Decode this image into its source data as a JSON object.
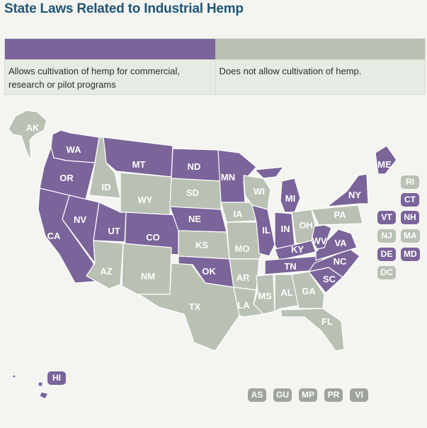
{
  "title": "State Laws Related to Industrial Hemp",
  "colors": {
    "allows": "#7a6499",
    "not_allowed": "#b9c0b4",
    "territory": "#9ea49a"
  },
  "legend": {
    "allows": "Allows cultivation of hemp for commercial, research or pilot programs",
    "not_allowed": "Does not allow cultivation of hemp."
  },
  "states": [
    {
      "code": "AK",
      "status": "not_allowed"
    },
    {
      "code": "WA",
      "status": "allows"
    },
    {
      "code": "OR",
      "status": "allows"
    },
    {
      "code": "CA",
      "status": "allows"
    },
    {
      "code": "NV",
      "status": "allows"
    },
    {
      "code": "ID",
      "status": "not_allowed"
    },
    {
      "code": "MT",
      "status": "allows"
    },
    {
      "code": "WY",
      "status": "not_allowed"
    },
    {
      "code": "UT",
      "status": "allows"
    },
    {
      "code": "AZ",
      "status": "not_allowed"
    },
    {
      "code": "CO",
      "status": "allows"
    },
    {
      "code": "NM",
      "status": "not_allowed"
    },
    {
      "code": "ND",
      "status": "allows"
    },
    {
      "code": "SD",
      "status": "not_allowed"
    },
    {
      "code": "NE",
      "status": "allows"
    },
    {
      "code": "KS",
      "status": "not_allowed"
    },
    {
      "code": "OK",
      "status": "allows"
    },
    {
      "code": "TX",
      "status": "not_allowed"
    },
    {
      "code": "MN",
      "status": "allows"
    },
    {
      "code": "IA",
      "status": "not_allowed"
    },
    {
      "code": "MO",
      "status": "not_allowed"
    },
    {
      "code": "AR",
      "status": "not_allowed"
    },
    {
      "code": "LA",
      "status": "not_allowed"
    },
    {
      "code": "WI",
      "status": "not_allowed"
    },
    {
      "code": "IL",
      "status": "allows"
    },
    {
      "code": "MI",
      "status": "allows"
    },
    {
      "code": "IN",
      "status": "allows"
    },
    {
      "code": "OH",
      "status": "not_allowed"
    },
    {
      "code": "KY",
      "status": "allows"
    },
    {
      "code": "TN",
      "status": "allows"
    },
    {
      "code": "MS",
      "status": "not_allowed"
    },
    {
      "code": "AL",
      "status": "not_allowed"
    },
    {
      "code": "GA",
      "status": "not_allowed"
    },
    {
      "code": "FL",
      "status": "not_allowed"
    },
    {
      "code": "SC",
      "status": "allows"
    },
    {
      "code": "NC",
      "status": "allows"
    },
    {
      "code": "VA",
      "status": "allows"
    },
    {
      "code": "WV",
      "status": "allows"
    },
    {
      "code": "PA",
      "status": "not_allowed"
    },
    {
      "code": "NY",
      "status": "allows"
    },
    {
      "code": "ME",
      "status": "allows"
    },
    {
      "code": "HI",
      "status": "allows"
    },
    {
      "code": "RI",
      "status": "not_allowed"
    },
    {
      "code": "CT",
      "status": "allows"
    },
    {
      "code": "VT",
      "status": "allows"
    },
    {
      "code": "NH",
      "status": "allows"
    },
    {
      "code": "NJ",
      "status": "not_allowed"
    },
    {
      "code": "MA",
      "status": "not_allowed"
    },
    {
      "code": "DE",
      "status": "allows"
    },
    {
      "code": "MD",
      "status": "allows"
    },
    {
      "code": "DC",
      "status": "not_allowed"
    }
  ],
  "territories": [
    "AS",
    "GU",
    "MP",
    "PR",
    "VI"
  ]
}
